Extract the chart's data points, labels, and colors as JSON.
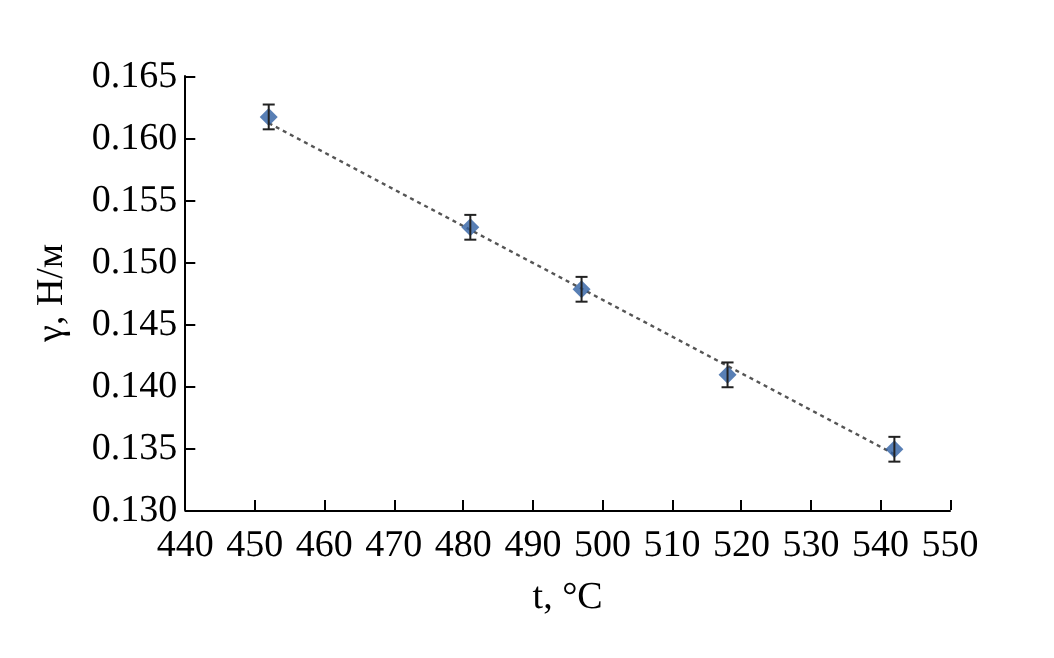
{
  "chart_data": {
    "type": "scatter",
    "xlabel": "t, °C",
    "ylabel": "γ, Н/м",
    "marker": "diamond",
    "xlim": [
      440,
      550
    ],
    "xticks": [
      440,
      450,
      460,
      470,
      480,
      490,
      500,
      510,
      520,
      530,
      540,
      550
    ],
    "ylim": [
      0.13,
      0.165
    ],
    "yticks": [
      {
        "value": 0.13,
        "label": "0.130"
      },
      0.135,
      {
        "value": 0.14,
        "label": "0.140"
      },
      0.145,
      {
        "value": 0.15,
        "label": "0.150"
      },
      0.155,
      {
        "value": 0.16,
        "label": "0.160"
      },
      0.165
    ],
    "series": [
      {
        "color": "#2e5fa3",
        "x": [
          452,
          481,
          497,
          518,
          542
        ],
        "values": [
          0.1617,
          0.1528,
          0.1478,
          0.1409,
          0.1349
        ],
        "errors": [
          0.001,
          0.001,
          0.001,
          0.001,
          0.001
        ]
      },
      {
        "type": "line",
        "color": "#555555",
        "line_style": "dotted",
        "marker": "none",
        "x": [
          452,
          542
        ],
        "values": [
          0.1612,
          0.1345
        ]
      }
    ]
  }
}
